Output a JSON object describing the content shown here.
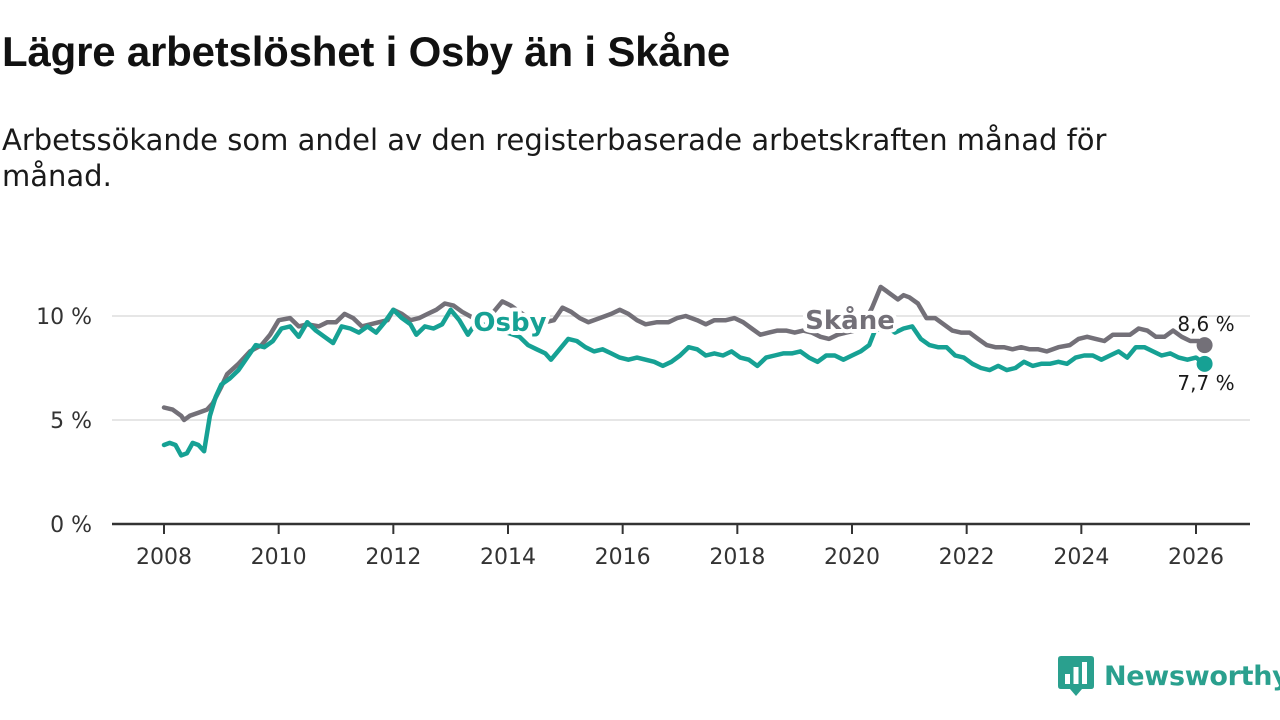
{
  "title": "Lägre arbetslöshet i Osby än i Skåne",
  "subtitle": "Arbetssökande som andel av den registerbaserade arbetskraften månad för månad.",
  "brand": {
    "name": "Newsworthy",
    "icon": "newsworthy-logo-icon"
  },
  "colors": {
    "osby": "#16a194",
    "skane": "#737078",
    "grid": "#dddddd",
    "axis": "#333333"
  },
  "chart_data": {
    "type": "line",
    "title": "Lägre arbetslöshet i Osby än i Skåne",
    "xlabel": "",
    "ylabel": "",
    "xlim": [
      2007.9,
      2027.0
    ],
    "ylim": [
      0,
      10
    ],
    "x_ticks": [
      2008,
      2010,
      2012,
      2014,
      2016,
      2018,
      2020,
      2022,
      2024,
      2026
    ],
    "y_ticks": [
      0,
      5,
      10
    ],
    "y_tick_labels": [
      "0 %",
      "5 %",
      "10 %"
    ],
    "series": [
      {
        "name": "Skåne",
        "color": "#737078",
        "end_label": "8,6 %",
        "points": [
          [
            2008.0,
            5.6
          ],
          [
            2008.15,
            5.5
          ],
          [
            2008.3,
            5.2
          ],
          [
            2008.35,
            5.0
          ],
          [
            2008.45,
            5.2
          ],
          [
            2008.6,
            5.35
          ],
          [
            2008.75,
            5.5
          ],
          [
            2008.85,
            5.8
          ],
          [
            2009.0,
            6.6
          ],
          [
            2009.1,
            7.2
          ],
          [
            2009.3,
            7.7
          ],
          [
            2009.5,
            8.3
          ],
          [
            2009.7,
            8.6
          ],
          [
            2009.85,
            9.1
          ],
          [
            2010.0,
            9.8
          ],
          [
            2010.2,
            9.9
          ],
          [
            2010.35,
            9.5
          ],
          [
            2010.5,
            9.6
          ],
          [
            2010.7,
            9.5
          ],
          [
            2010.85,
            9.7
          ],
          [
            2011.0,
            9.7
          ],
          [
            2011.15,
            10.1
          ],
          [
            2011.3,
            9.9
          ],
          [
            2011.45,
            9.5
          ],
          [
            2011.6,
            9.6
          ],
          [
            2011.75,
            9.7
          ],
          [
            2011.9,
            9.8
          ],
          [
            2012.0,
            10.3
          ],
          [
            2012.15,
            10.1
          ],
          [
            2012.3,
            9.8
          ],
          [
            2012.45,
            9.9
          ],
          [
            2012.6,
            10.1
          ],
          [
            2012.75,
            10.3
          ],
          [
            2012.9,
            10.6
          ],
          [
            2013.05,
            10.5
          ],
          [
            2013.2,
            10.2
          ],
          [
            2013.4,
            9.9
          ],
          [
            2013.6,
            10.1
          ],
          [
            2013.75,
            10.2
          ],
          [
            2013.9,
            10.7
          ],
          [
            2014.05,
            10.5
          ],
          [
            2014.2,
            10.2
          ],
          [
            2014.35,
            9.9
          ],
          [
            2014.5,
            9.7
          ],
          [
            2014.65,
            9.7
          ],
          [
            2014.8,
            9.8
          ],
          [
            2014.95,
            10.4
          ],
          [
            2015.1,
            10.2
          ],
          [
            2015.25,
            9.9
          ],
          [
            2015.4,
            9.7
          ],
          [
            2015.6,
            9.9
          ],
          [
            2015.8,
            10.1
          ],
          [
            2015.95,
            10.3
          ],
          [
            2016.1,
            10.1
          ],
          [
            2016.25,
            9.8
          ],
          [
            2016.4,
            9.6
          ],
          [
            2016.6,
            9.7
          ],
          [
            2016.8,
            9.7
          ],
          [
            2016.95,
            9.9
          ],
          [
            2017.1,
            10.0
          ],
          [
            2017.3,
            9.8
          ],
          [
            2017.45,
            9.6
          ],
          [
            2017.6,
            9.8
          ],
          [
            2017.8,
            9.8
          ],
          [
            2017.95,
            9.9
          ],
          [
            2018.1,
            9.7
          ],
          [
            2018.25,
            9.4
          ],
          [
            2018.4,
            9.1
          ],
          [
            2018.55,
            9.2
          ],
          [
            2018.7,
            9.3
          ],
          [
            2018.85,
            9.3
          ],
          [
            2019.0,
            9.2
          ],
          [
            2019.15,
            9.3
          ],
          [
            2019.3,
            9.2
          ],
          [
            2019.45,
            9.0
          ],
          [
            2019.6,
            8.9
          ],
          [
            2019.75,
            9.1
          ],
          [
            2019.9,
            9.2
          ],
          [
            2020.05,
            9.3
          ],
          [
            2020.2,
            9.6
          ],
          [
            2020.35,
            10.4
          ],
          [
            2020.5,
            11.4
          ],
          [
            2020.6,
            11.2
          ],
          [
            2020.7,
            11.0
          ],
          [
            2020.8,
            10.8
          ],
          [
            2020.9,
            11.0
          ],
          [
            2021.0,
            10.9
          ],
          [
            2021.15,
            10.6
          ],
          [
            2021.3,
            9.9
          ],
          [
            2021.45,
            9.9
          ],
          [
            2021.6,
            9.6
          ],
          [
            2021.75,
            9.3
          ],
          [
            2021.9,
            9.2
          ],
          [
            2022.05,
            9.2
          ],
          [
            2022.2,
            8.9
          ],
          [
            2022.35,
            8.6
          ],
          [
            2022.5,
            8.5
          ],
          [
            2022.65,
            8.5
          ],
          [
            2022.8,
            8.4
          ],
          [
            2022.95,
            8.5
          ],
          [
            2023.1,
            8.4
          ],
          [
            2023.25,
            8.4
          ],
          [
            2023.4,
            8.3
          ],
          [
            2023.6,
            8.5
          ],
          [
            2023.8,
            8.6
          ],
          [
            2023.95,
            8.9
          ],
          [
            2024.1,
            9.0
          ],
          [
            2024.25,
            8.9
          ],
          [
            2024.4,
            8.8
          ],
          [
            2024.55,
            9.1
          ],
          [
            2024.7,
            9.1
          ],
          [
            2024.85,
            9.1
          ],
          [
            2025.0,
            9.4
          ],
          [
            2025.15,
            9.3
          ],
          [
            2025.3,
            9.0
          ],
          [
            2025.45,
            9.0
          ],
          [
            2025.6,
            9.3
          ],
          [
            2025.75,
            9.0
          ],
          [
            2025.9,
            8.8
          ],
          [
            2026.05,
            8.8
          ],
          [
            2026.15,
            8.6
          ]
        ]
      },
      {
        "name": "Osby",
        "color": "#16a194",
        "end_label": "7,7 %",
        "points": [
          [
            2008.0,
            3.8
          ],
          [
            2008.1,
            3.9
          ],
          [
            2008.2,
            3.8
          ],
          [
            2008.3,
            3.3
          ],
          [
            2008.4,
            3.4
          ],
          [
            2008.5,
            3.9
          ],
          [
            2008.6,
            3.8
          ],
          [
            2008.7,
            3.5
          ],
          [
            2008.8,
            5.2
          ],
          [
            2008.9,
            6.1
          ],
          [
            2009.0,
            6.7
          ],
          [
            2009.15,
            7.0
          ],
          [
            2009.3,
            7.4
          ],
          [
            2009.45,
            8.0
          ],
          [
            2009.6,
            8.6
          ],
          [
            2009.75,
            8.5
          ],
          [
            2009.9,
            8.8
          ],
          [
            2010.05,
            9.4
          ],
          [
            2010.2,
            9.5
          ],
          [
            2010.35,
            9.0
          ],
          [
            2010.5,
            9.7
          ],
          [
            2010.65,
            9.3
          ],
          [
            2010.8,
            9.0
          ],
          [
            2010.95,
            8.7
          ],
          [
            2011.1,
            9.5
          ],
          [
            2011.25,
            9.4
          ],
          [
            2011.4,
            9.2
          ],
          [
            2011.55,
            9.5
          ],
          [
            2011.7,
            9.2
          ],
          [
            2011.85,
            9.7
          ],
          [
            2012.0,
            10.3
          ],
          [
            2012.15,
            9.9
          ],
          [
            2012.3,
            9.6
          ],
          [
            2012.4,
            9.1
          ],
          [
            2012.55,
            9.5
          ],
          [
            2012.7,
            9.4
          ],
          [
            2012.85,
            9.6
          ],
          [
            2013.0,
            10.3
          ],
          [
            2013.15,
            9.8
          ],
          [
            2013.3,
            9.1
          ],
          [
            2013.45,
            9.7
          ],
          [
            2014.2,
            9.0
          ],
          [
            2014.35,
            8.6
          ],
          [
            2014.5,
            8.4
          ],
          [
            2014.65,
            8.2
          ],
          [
            2014.75,
            7.9
          ],
          [
            2014.9,
            8.4
          ],
          [
            2015.05,
            8.9
          ],
          [
            2015.2,
            8.8
          ],
          [
            2015.35,
            8.5
          ],
          [
            2015.5,
            8.3
          ],
          [
            2015.65,
            8.4
          ],
          [
            2015.8,
            8.2
          ],
          [
            2015.95,
            8.0
          ],
          [
            2016.1,
            7.9
          ],
          [
            2016.25,
            8.0
          ],
          [
            2016.4,
            7.9
          ],
          [
            2016.55,
            7.8
          ],
          [
            2016.7,
            7.6
          ],
          [
            2016.85,
            7.8
          ],
          [
            2017.0,
            8.1
          ],
          [
            2017.15,
            8.5
          ],
          [
            2017.3,
            8.4
          ],
          [
            2017.45,
            8.1
          ],
          [
            2017.6,
            8.2
          ],
          [
            2017.75,
            8.1
          ],
          [
            2017.9,
            8.3
          ],
          [
            2018.05,
            8.0
          ],
          [
            2018.2,
            7.9
          ],
          [
            2018.35,
            7.6
          ],
          [
            2018.5,
            8.0
          ],
          [
            2018.65,
            8.1
          ],
          [
            2018.8,
            8.2
          ],
          [
            2018.95,
            8.2
          ],
          [
            2019.1,
            8.3
          ],
          [
            2019.25,
            8.0
          ],
          [
            2019.4,
            7.8
          ],
          [
            2019.55,
            8.1
          ],
          [
            2019.7,
            8.1
          ],
          [
            2019.85,
            7.9
          ],
          [
            2020.0,
            8.1
          ],
          [
            2020.15,
            8.3
          ],
          [
            2020.3,
            8.6
          ],
          [
            2020.4,
            9.3
          ],
          [
            2020.5,
            9.4
          ],
          [
            2020.6,
            9.5
          ],
          [
            2020.75,
            9.2
          ],
          [
            2020.9,
            9.4
          ],
          [
            2021.05,
            9.5
          ],
          [
            2021.2,
            8.9
          ],
          [
            2021.35,
            8.6
          ],
          [
            2021.5,
            8.5
          ],
          [
            2021.65,
            8.5
          ],
          [
            2021.8,
            8.1
          ],
          [
            2021.95,
            8.0
          ],
          [
            2022.1,
            7.7
          ],
          [
            2022.25,
            7.5
          ],
          [
            2022.4,
            7.4
          ],
          [
            2022.55,
            7.6
          ],
          [
            2022.7,
            7.4
          ],
          [
            2022.85,
            7.5
          ],
          [
            2023.0,
            7.8
          ],
          [
            2023.15,
            7.6
          ],
          [
            2023.3,
            7.7
          ],
          [
            2023.45,
            7.7
          ],
          [
            2023.6,
            7.8
          ],
          [
            2023.75,
            7.7
          ],
          [
            2023.9,
            8.0
          ],
          [
            2024.05,
            8.1
          ],
          [
            2024.2,
            8.1
          ],
          [
            2024.35,
            7.9
          ],
          [
            2024.5,
            8.1
          ],
          [
            2024.65,
            8.3
          ],
          [
            2024.8,
            8.0
          ],
          [
            2024.95,
            8.5
          ],
          [
            2025.1,
            8.5
          ],
          [
            2025.25,
            8.3
          ],
          [
            2025.4,
            8.1
          ],
          [
            2025.55,
            8.2
          ],
          [
            2025.7,
            8.0
          ],
          [
            2025.85,
            7.9
          ],
          [
            2026.0,
            8.0
          ],
          [
            2026.15,
            7.7
          ]
        ]
      }
    ]
  }
}
